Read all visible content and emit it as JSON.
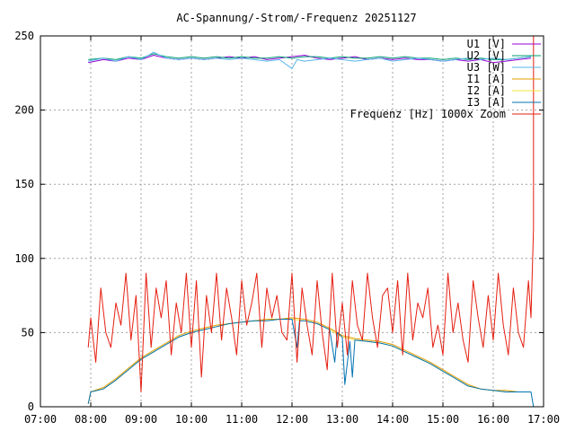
{
  "chart_data": {
    "type": "line",
    "title": "AC-Spannung/-Strom/-Frequenz 20251127",
    "xlabel": "",
    "ylabel": "",
    "xlim": [
      7,
      17
    ],
    "ylim": [
      0,
      250
    ],
    "x_ticks": [
      "07:00",
      "08:00",
      "09:00",
      "10:00",
      "11:00",
      "12:00",
      "13:00",
      "14:00",
      "15:00",
      "16:00",
      "17:00"
    ],
    "y_ticks": [
      "0",
      "50",
      "100",
      "150",
      "200",
      "250"
    ],
    "grid": true,
    "legend_position": "top-right",
    "series": [
      {
        "name": "U1 [V]",
        "color": "#9400d3",
        "x": [
          7.95,
          8.25,
          8.5,
          8.75,
          9.0,
          9.25,
          9.5,
          9.75,
          10.0,
          10.25,
          10.5,
          10.75,
          11.0,
          11.25,
          11.5,
          11.75,
          12.0,
          12.25,
          12.5,
          12.75,
          13.0,
          13.25,
          13.5,
          13.75,
          14.0,
          14.25,
          14.5,
          14.75,
          15.0,
          15.25,
          15.5,
          15.75,
          16.0,
          16.25,
          16.5,
          16.75
        ],
        "y": [
          232,
          234,
          233,
          235,
          234,
          237,
          235,
          234,
          235,
          234,
          235,
          236,
          235,
          236,
          234,
          235,
          236,
          237,
          235,
          234,
          235,
          236,
          234,
          235,
          234,
          235,
          234,
          234,
          233,
          234,
          233,
          234,
          232,
          233,
          234,
          235
        ]
      },
      {
        "name": "U2 [V]",
        "color": "#009e73",
        "x": [
          7.95,
          8.25,
          8.5,
          8.75,
          9.0,
          9.25,
          9.5,
          9.75,
          10.0,
          10.25,
          10.5,
          10.75,
          11.0,
          11.25,
          11.5,
          11.75,
          12.0,
          12.25,
          12.5,
          12.75,
          13.0,
          13.25,
          13.5,
          13.75,
          14.0,
          14.25,
          14.5,
          14.75,
          15.0,
          15.25,
          15.5,
          15.75,
          16.0,
          16.25,
          16.5,
          16.75
        ],
        "y": [
          234,
          235,
          234,
          236,
          235,
          238,
          236,
          235,
          236,
          235,
          236,
          235,
          236,
          235,
          235,
          236,
          235,
          236,
          236,
          235,
          236,
          235,
          235,
          236,
          235,
          236,
          235,
          235,
          234,
          235,
          234,
          235,
          234,
          234,
          235,
          236
        ]
      },
      {
        "name": "U3 [W]",
        "color": "#56b4e9",
        "x": [
          7.95,
          8.25,
          8.5,
          8.75,
          9.0,
          9.25,
          9.5,
          9.75,
          10.0,
          10.25,
          10.5,
          10.75,
          11.0,
          11.25,
          11.5,
          11.75,
          12.0,
          12.1,
          12.25,
          12.5,
          12.75,
          13.0,
          13.25,
          13.5,
          13.75,
          14.0,
          14.25,
          14.5,
          14.75,
          15.0,
          15.25,
          15.5,
          15.75,
          16.0,
          16.25,
          16.5,
          16.75
        ],
        "y": [
          233,
          235,
          233,
          236,
          234,
          239,
          235,
          234,
          235,
          234,
          235,
          234,
          235,
          234,
          233,
          234,
          228,
          234,
          233,
          234,
          235,
          234,
          233,
          234,
          235,
          233,
          234,
          235,
          234,
          233,
          234,
          235,
          234,
          235,
          234,
          235,
          236
        ]
      },
      {
        "name": "I1 [A]",
        "color": "#e69f00",
        "x": [
          7.95,
          8.0,
          8.25,
          8.5,
          8.75,
          9.0,
          9.25,
          9.5,
          9.75,
          10.0,
          10.25,
          10.5,
          10.75,
          11.0,
          11.25,
          11.5,
          11.75,
          12.0,
          12.25,
          12.5,
          12.75,
          13.0,
          13.25,
          13.5,
          13.75,
          14.0,
          14.25,
          14.5,
          14.75,
          15.0,
          15.25,
          15.5,
          15.75,
          16.0,
          16.25,
          16.5,
          16.75
        ],
        "y": [
          2,
          10,
          13,
          19,
          26,
          33,
          38,
          43,
          48,
          51,
          53,
          55,
          56,
          57,
          58,
          59,
          59,
          60,
          59,
          57,
          53,
          48,
          46,
          45,
          44,
          42,
          38,
          34,
          30,
          25,
          20,
          15,
          12,
          11,
          11,
          10,
          10
        ]
      },
      {
        "name": "I2 [A]",
        "color": "#f0e442",
        "x": [
          7.95,
          8.0,
          8.25,
          8.5,
          8.75,
          9.0,
          9.25,
          9.5,
          9.75,
          10.0,
          10.25,
          10.5,
          10.75,
          11.0,
          11.25,
          11.5,
          11.75,
          12.0,
          12.25,
          12.5,
          12.75,
          13.0,
          13.25,
          13.5,
          13.75,
          14.0,
          14.25,
          14.5,
          14.75,
          15.0,
          15.25,
          15.5,
          15.75,
          16.0,
          16.25,
          16.5,
          16.75
        ],
        "y": [
          2,
          10,
          12,
          18,
          25,
          32,
          37,
          42,
          47,
          50,
          52,
          54,
          56,
          57,
          58,
          58,
          59,
          59,
          58,
          56,
          52,
          47,
          45,
          44,
          43,
          41,
          37,
          33,
          29,
          24,
          19,
          14,
          12,
          11,
          10,
          10,
          10
        ]
      },
      {
        "name": "I3 [A]",
        "color": "#0072b2",
        "x": [
          7.95,
          8.0,
          8.25,
          8.5,
          8.75,
          9.0,
          9.25,
          9.5,
          9.75,
          10.0,
          10.25,
          10.5,
          10.75,
          11.0,
          11.25,
          11.5,
          11.75,
          12.0,
          12.1,
          12.15,
          12.25,
          12.5,
          12.75,
          12.85,
          12.9,
          13.0,
          13.05,
          13.15,
          13.2,
          13.25,
          13.5,
          13.75,
          14.0,
          14.25,
          14.5,
          14.75,
          15.0,
          15.25,
          15.5,
          15.75,
          16.0,
          16.25,
          16.5,
          16.75,
          16.8
        ],
        "y": [
          2,
          10,
          12,
          18,
          25,
          32,
          37,
          42,
          47,
          50,
          52,
          54,
          56,
          57,
          58,
          58,
          59,
          59,
          40,
          58,
          58,
          56,
          52,
          30,
          50,
          47,
          15,
          44,
          20,
          45,
          44,
          43,
          41,
          37,
          33,
          29,
          24,
          19,
          14,
          12,
          11,
          10,
          10,
          10,
          0
        ]
      },
      {
        "name": "Frequenz [Hz] 1000x Zoom",
        "color": "#e51e10",
        "x": [
          7.95,
          8.0,
          8.1,
          8.2,
          8.3,
          8.4,
          8.5,
          8.6,
          8.7,
          8.8,
          8.9,
          9.0,
          9.1,
          9.2,
          9.3,
          9.4,
          9.5,
          9.6,
          9.7,
          9.8,
          9.9,
          10.0,
          10.1,
          10.2,
          10.3,
          10.4,
          10.5,
          10.6,
          10.7,
          10.8,
          10.9,
          11.0,
          11.1,
          11.2,
          11.3,
          11.4,
          11.5,
          11.6,
          11.7,
          11.8,
          11.9,
          12.0,
          12.1,
          12.2,
          12.3,
          12.4,
          12.5,
          12.6,
          12.7,
          12.8,
          12.9,
          13.0,
          13.1,
          13.2,
          13.3,
          13.4,
          13.5,
          13.6,
          13.7,
          13.8,
          13.9,
          14.0,
          14.1,
          14.2,
          14.3,
          14.4,
          14.5,
          14.6,
          14.7,
          14.8,
          14.9,
          15.0,
          15.1,
          15.2,
          15.3,
          15.4,
          15.5,
          15.6,
          15.7,
          15.8,
          15.9,
          16.0,
          16.1,
          16.2,
          16.3,
          16.4,
          16.5,
          16.6,
          16.7,
          16.75,
          16.8,
          16.8
        ],
        "y": [
          40,
          60,
          30,
          80,
          50,
          40,
          70,
          55,
          90,
          45,
          75,
          10,
          90,
          40,
          80,
          60,
          85,
          35,
          70,
          50,
          90,
          40,
          85,
          20,
          75,
          50,
          90,
          45,
          80,
          60,
          35,
          85,
          55,
          70,
          90,
          40,
          80,
          60,
          75,
          50,
          45,
          90,
          30,
          80,
          55,
          35,
          85,
          50,
          25,
          90,
          40,
          70,
          35,
          85,
          55,
          45,
          90,
          60,
          40,
          75,
          80,
          50,
          85,
          35,
          90,
          45,
          70,
          60,
          80,
          40,
          55,
          35,
          90,
          50,
          70,
          45,
          30,
          85,
          60,
          40,
          75,
          45,
          90,
          55,
          35,
          80,
          50,
          40,
          85,
          60,
          120,
          250
        ]
      }
    ]
  }
}
